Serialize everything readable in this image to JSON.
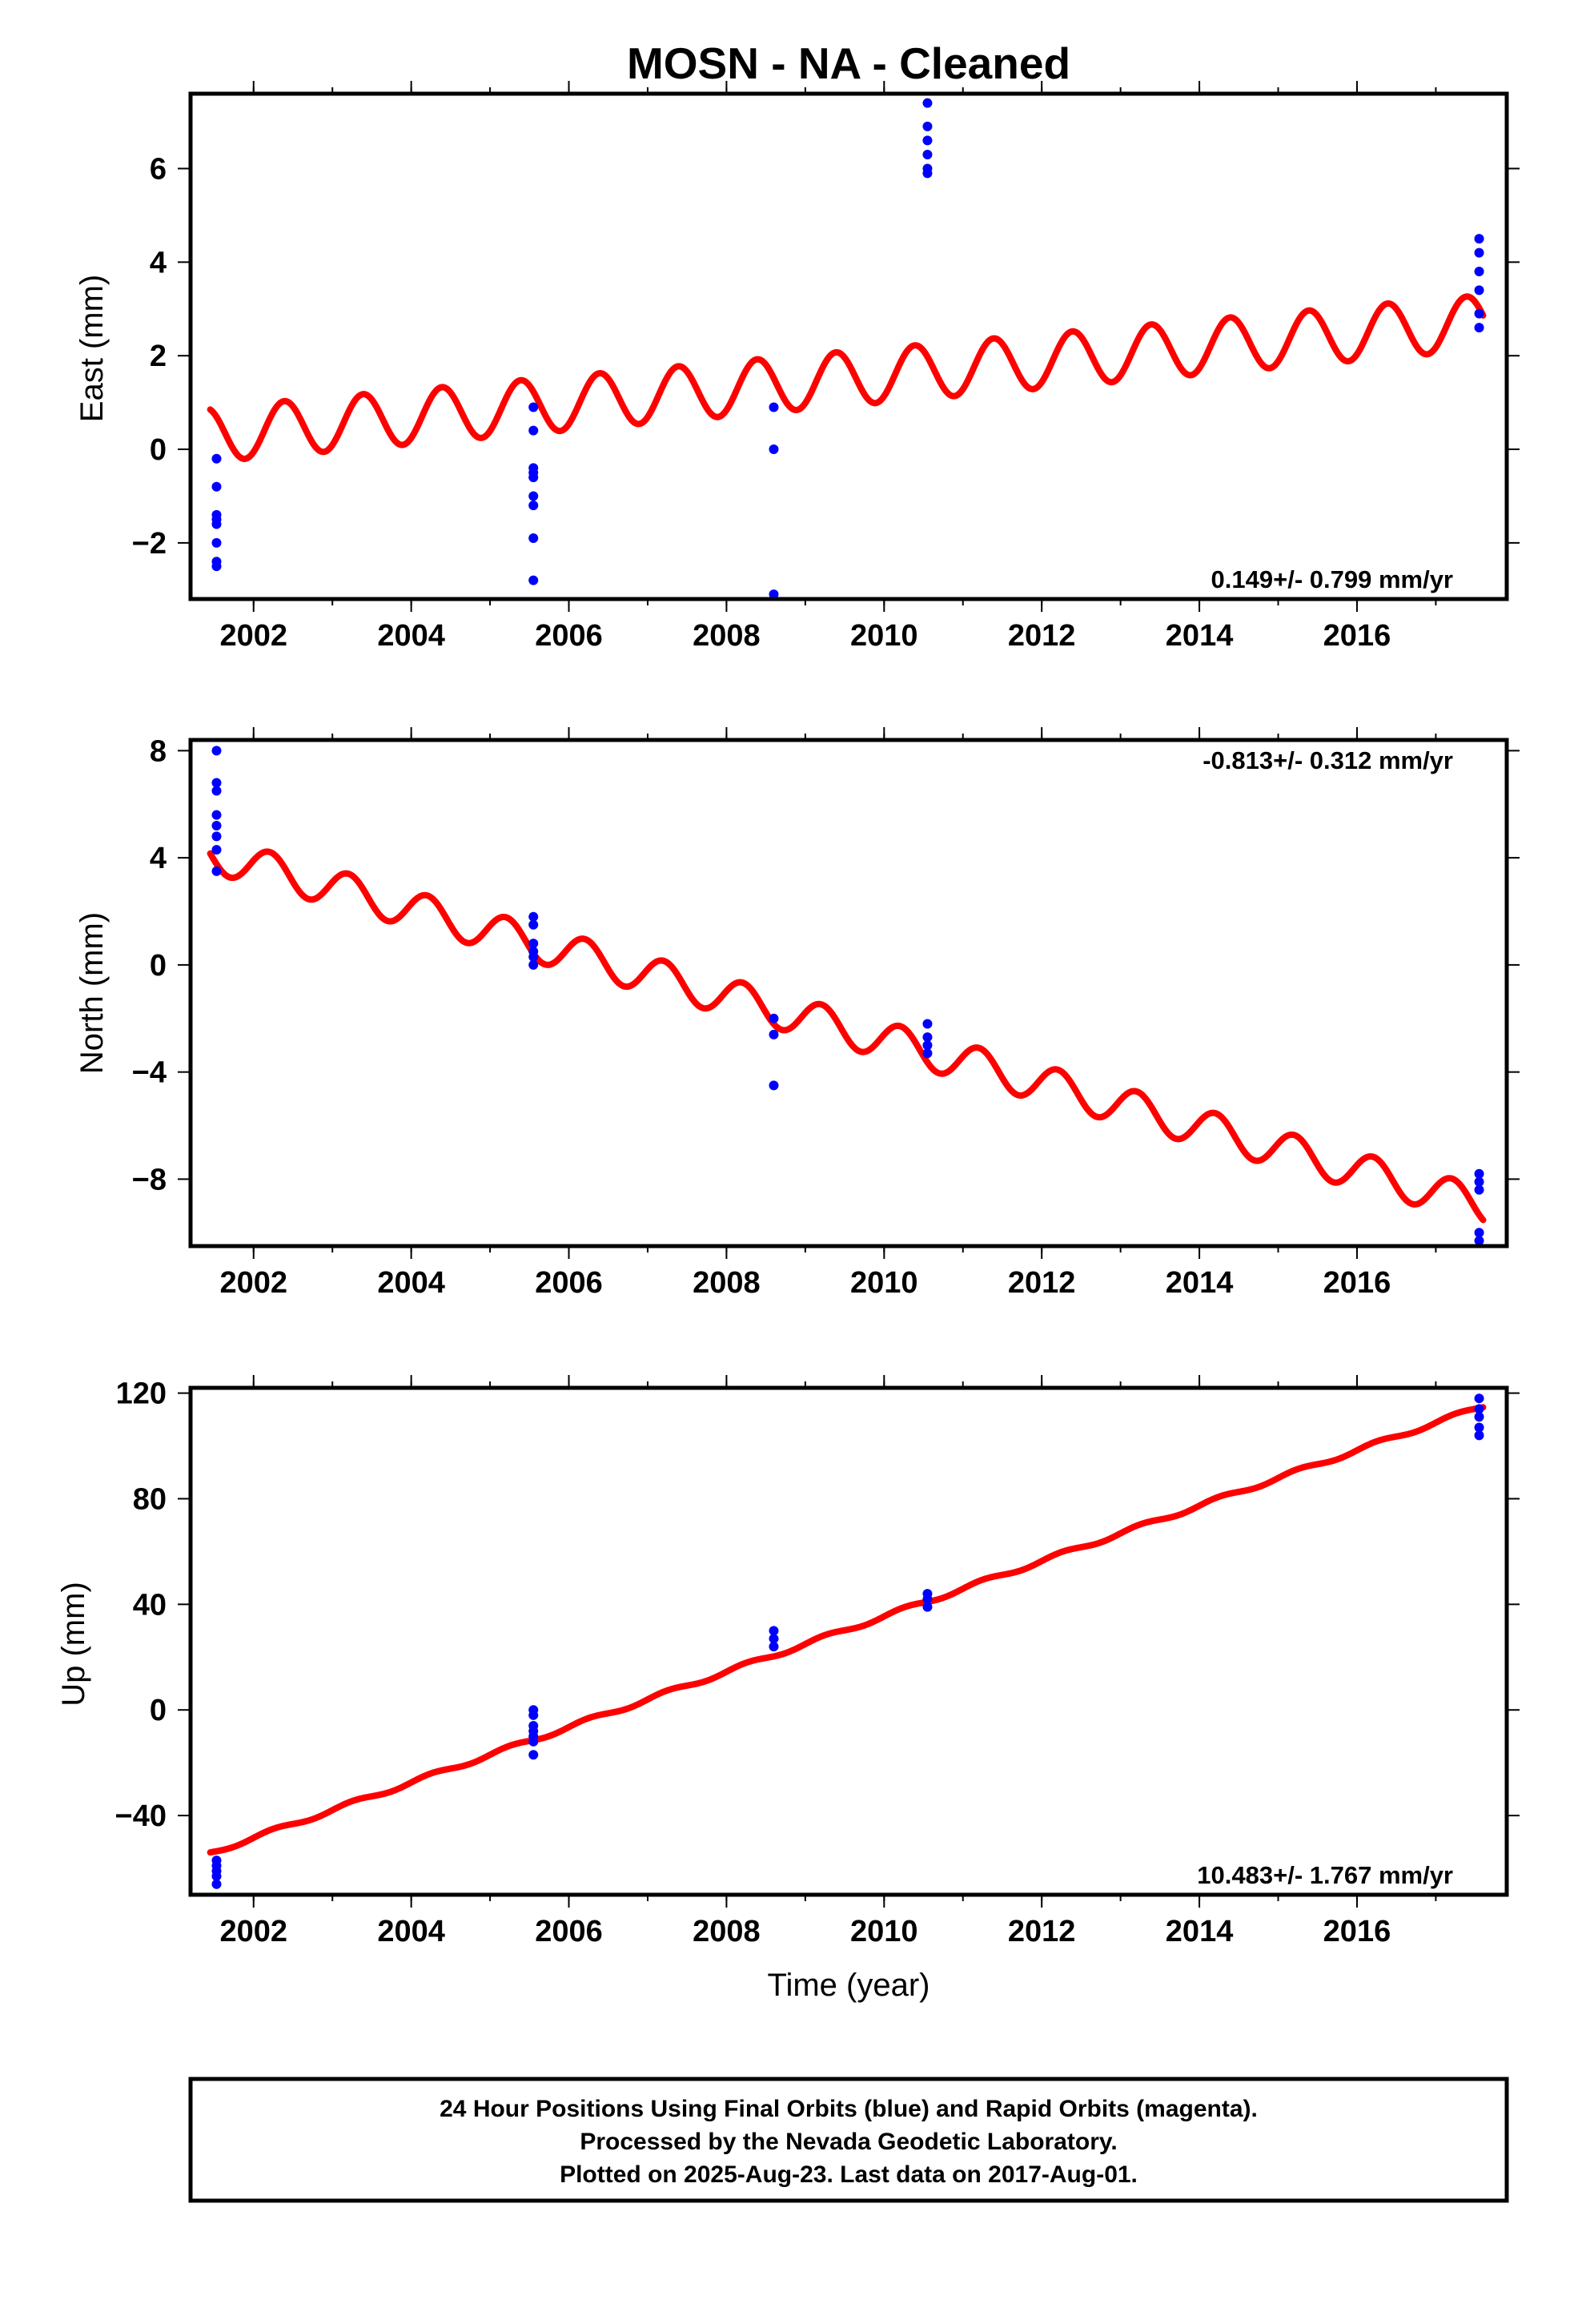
{
  "title": "MOSN  - NA - Cleaned",
  "colors": {
    "positions": "#0000ff",
    "model": "#ff0000",
    "frame": "#000000"
  },
  "xlabel": "Time (year)",
  "footer": {
    "line1": "24 Hour Positions Using Final Orbits (blue) and Rapid Orbits (magenta).",
    "line2": "Processed by the Nevada Geodetic Laboratory.",
    "line3": "Plotted on 2025-Aug-23. Last data on 2017-Aug-01."
  },
  "chart_data": [
    {
      "type": "scatter",
      "ylabel": "East (mm)",
      "xlim": [
        2001.2,
        2017.9
      ],
      "ylim": [
        -3.2,
        7.6
      ],
      "xticks": [
        2002,
        2004,
        2006,
        2008,
        2010,
        2012,
        2014,
        2016
      ],
      "yticks": [
        -2,
        0,
        2,
        4,
        6
      ],
      "ytick_labels": [
        "−2",
        "0",
        "2",
        "4",
        "6"
      ],
      "rate": "0.149+/- 0.799 mm/yr",
      "rate_position": "bottom-right",
      "positions": [
        {
          "x": 2001.53,
          "y": -0.2
        },
        {
          "x": 2001.53,
          "y": -0.8
        },
        {
          "x": 2001.53,
          "y": -1.4
        },
        {
          "x": 2001.53,
          "y": -1.5
        },
        {
          "x": 2001.53,
          "y": -1.6
        },
        {
          "x": 2001.53,
          "y": -2.0
        },
        {
          "x": 2001.53,
          "y": -2.4
        },
        {
          "x": 2001.53,
          "y": -2.5
        },
        {
          "x": 2005.55,
          "y": 0.9
        },
        {
          "x": 2005.55,
          "y": 0.4
        },
        {
          "x": 2005.55,
          "y": -0.4
        },
        {
          "x": 2005.55,
          "y": -0.5
        },
        {
          "x": 2005.55,
          "y": -0.6
        },
        {
          "x": 2005.55,
          "y": -1.0
        },
        {
          "x": 2005.55,
          "y": -1.2
        },
        {
          "x": 2005.55,
          "y": -1.9
        },
        {
          "x": 2005.55,
          "y": -2.8
        },
        {
          "x": 2008.6,
          "y": 0.9
        },
        {
          "x": 2008.6,
          "y": 0.0
        },
        {
          "x": 2008.6,
          "y": -3.1
        },
        {
          "x": 2010.55,
          "y": 7.4
        },
        {
          "x": 2010.55,
          "y": 6.9
        },
        {
          "x": 2010.55,
          "y": 6.6
        },
        {
          "x": 2010.55,
          "y": 6.3
        },
        {
          "x": 2010.55,
          "y": 6.0
        },
        {
          "x": 2010.55,
          "y": 5.9
        },
        {
          "x": 2017.55,
          "y": 4.5
        },
        {
          "x": 2017.55,
          "y": 4.2
        },
        {
          "x": 2017.55,
          "y": 3.8
        },
        {
          "x": 2017.55,
          "y": 3.4
        },
        {
          "x": 2017.55,
          "y": 2.9
        },
        {
          "x": 2017.55,
          "y": 2.6
        }
      ],
      "model": {
        "start": 2001.45,
        "end": 2017.6,
        "offset": 0.31,
        "slope": 0.149,
        "ref_year": 2001.45,
        "annual_amp": 0.58,
        "annual_phase": -0.88
      }
    },
    {
      "type": "scatter",
      "ylabel": "North (mm)",
      "xlim": [
        2001.2,
        2017.9
      ],
      "ylim": [
        -10.5,
        8.4
      ],
      "xticks": [
        2002,
        2004,
        2006,
        2008,
        2010,
        2012,
        2014,
        2016
      ],
      "yticks": [
        -8,
        -4,
        0,
        4,
        8
      ],
      "ytick_labels": [
        "−8",
        "−4",
        "0",
        "4",
        "8"
      ],
      "rate": "-0.813+/- 0.312 mm/yr",
      "rate_position": "top-right",
      "positions": [
        {
          "x": 2001.53,
          "y": 8.0
        },
        {
          "x": 2001.53,
          "y": 6.8
        },
        {
          "x": 2001.53,
          "y": 6.5
        },
        {
          "x": 2001.53,
          "y": 5.6
        },
        {
          "x": 2001.53,
          "y": 5.2
        },
        {
          "x": 2001.53,
          "y": 4.8
        },
        {
          "x": 2001.53,
          "y": 4.3
        },
        {
          "x": 2001.53,
          "y": 3.5
        },
        {
          "x": 2005.55,
          "y": 1.8
        },
        {
          "x": 2005.55,
          "y": 1.5
        },
        {
          "x": 2005.55,
          "y": 0.8
        },
        {
          "x": 2005.55,
          "y": 0.5
        },
        {
          "x": 2005.55,
          "y": 0.3
        },
        {
          "x": 2005.55,
          "y": 0.0
        },
        {
          "x": 2008.6,
          "y": -2.0
        },
        {
          "x": 2008.6,
          "y": -2.6
        },
        {
          "x": 2008.6,
          "y": -4.5
        },
        {
          "x": 2010.55,
          "y": -2.2
        },
        {
          "x": 2010.55,
          "y": -2.7
        },
        {
          "x": 2010.55,
          "y": -3.0
        },
        {
          "x": 2010.55,
          "y": -3.3
        },
        {
          "x": 2017.55,
          "y": -7.8
        },
        {
          "x": 2017.55,
          "y": -8.1
        },
        {
          "x": 2017.55,
          "y": -8.4
        },
        {
          "x": 2017.55,
          "y": -10.0
        },
        {
          "x": 2017.55,
          "y": -10.3
        }
      ],
      "model": {
        "start": 2001.45,
        "end": 2017.6,
        "offset": 4.15,
        "slope": -0.813,
        "ref_year": 2001.45,
        "annual_amp": 0.68,
        "annual_phase": 0.3
      }
    },
    {
      "type": "scatter",
      "ylabel": "Up (mm)",
      "xlim": [
        2001.2,
        2017.9
      ],
      "ylim": [
        -70,
        122
      ],
      "xticks": [
        2002,
        2004,
        2006,
        2008,
        2010,
        2012,
        2014,
        2016
      ],
      "yticks": [
        -40,
        0,
        40,
        80,
        120
      ],
      "ytick_labels": [
        "−40",
        "0",
        "40",
        "80",
        "120"
      ],
      "rate": "10.483+/- 1.767 mm/yr",
      "rate_position": "bottom-right",
      "positions": [
        {
          "x": 2001.53,
          "y": -57
        },
        {
          "x": 2001.53,
          "y": -59
        },
        {
          "x": 2001.53,
          "y": -61
        },
        {
          "x": 2001.53,
          "y": -63
        },
        {
          "x": 2001.53,
          "y": -66
        },
        {
          "x": 2005.55,
          "y": 0
        },
        {
          "x": 2005.55,
          "y": -2
        },
        {
          "x": 2005.55,
          "y": -6
        },
        {
          "x": 2005.55,
          "y": -8
        },
        {
          "x": 2005.55,
          "y": -10
        },
        {
          "x": 2005.55,
          "y": -12
        },
        {
          "x": 2005.55,
          "y": -17
        },
        {
          "x": 2008.6,
          "y": 30
        },
        {
          "x": 2008.6,
          "y": 27
        },
        {
          "x": 2008.6,
          "y": 24
        },
        {
          "x": 2010.55,
          "y": 44
        },
        {
          "x": 2010.55,
          "y": 42
        },
        {
          "x": 2010.55,
          "y": 39
        },
        {
          "x": 2017.55,
          "y": 118
        },
        {
          "x": 2017.55,
          "y": 114
        },
        {
          "x": 2017.55,
          "y": 111
        },
        {
          "x": 2017.55,
          "y": 107
        },
        {
          "x": 2017.55,
          "y": 104
        }
      ],
      "model": {
        "start": 2001.45,
        "end": 2017.6,
        "offset": -54.2,
        "slope": 10.483,
        "ref_year": 2001.45,
        "annual_amp": 0.8,
        "annual_phase": 0.0
      }
    }
  ]
}
